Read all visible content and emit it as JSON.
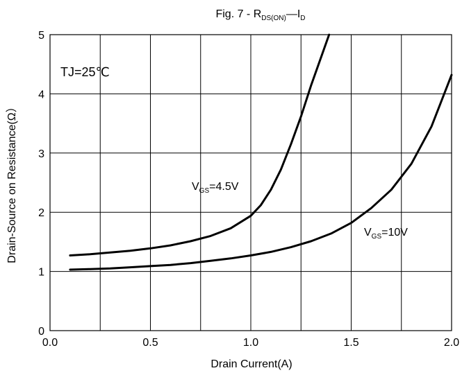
{
  "chart_data": {
    "type": "line",
    "title": {
      "prefix": "Fig. 7 - R",
      "sub1": "DS(ON)",
      "mid": "—I",
      "sub2": "D"
    },
    "xlabel": "Drain Current(A)",
    "ylabel": "Drain-Source on Resistance(Ω）",
    "xlim": [
      0,
      2
    ],
    "ylim": [
      0,
      5
    ],
    "x_ticks": [
      "0.0",
      "0.5",
      "1.0",
      "1.5",
      "2.0"
    ],
    "y_ticks": [
      "0",
      "1",
      "2",
      "3",
      "4",
      "5"
    ],
    "grid": true,
    "annotation": "TJ=25℃",
    "series": [
      {
        "name": "VGS=4.5V",
        "label": {
          "main": "V",
          "sub": "GS",
          "rest": "=4.5V"
        },
        "points": [
          [
            0.1,
            1.27
          ],
          [
            0.2,
            1.29
          ],
          [
            0.3,
            1.32
          ],
          [
            0.4,
            1.35
          ],
          [
            0.5,
            1.39
          ],
          [
            0.6,
            1.44
          ],
          [
            0.7,
            1.51
          ],
          [
            0.8,
            1.6
          ],
          [
            0.9,
            1.73
          ],
          [
            1.0,
            1.94
          ],
          [
            1.05,
            2.12
          ],
          [
            1.1,
            2.38
          ],
          [
            1.15,
            2.72
          ],
          [
            1.2,
            3.15
          ],
          [
            1.25,
            3.62
          ],
          [
            1.3,
            4.14
          ],
          [
            1.35,
            4.62
          ],
          [
            1.39,
            5.0
          ]
        ]
      },
      {
        "name": "VGS=10V",
        "label": {
          "main": "V",
          "sub": "GS",
          "rest": "=10V"
        },
        "points": [
          [
            0.1,
            1.03
          ],
          [
            0.2,
            1.04
          ],
          [
            0.3,
            1.05
          ],
          [
            0.4,
            1.07
          ],
          [
            0.5,
            1.09
          ],
          [
            0.6,
            1.11
          ],
          [
            0.7,
            1.14
          ],
          [
            0.8,
            1.18
          ],
          [
            0.9,
            1.22
          ],
          [
            1.0,
            1.27
          ],
          [
            1.1,
            1.33
          ],
          [
            1.2,
            1.41
          ],
          [
            1.3,
            1.51
          ],
          [
            1.4,
            1.64
          ],
          [
            1.5,
            1.82
          ],
          [
            1.6,
            2.07
          ],
          [
            1.7,
            2.38
          ],
          [
            1.8,
            2.82
          ],
          [
            1.9,
            3.45
          ],
          [
            2.0,
            4.32
          ]
        ]
      }
    ]
  }
}
